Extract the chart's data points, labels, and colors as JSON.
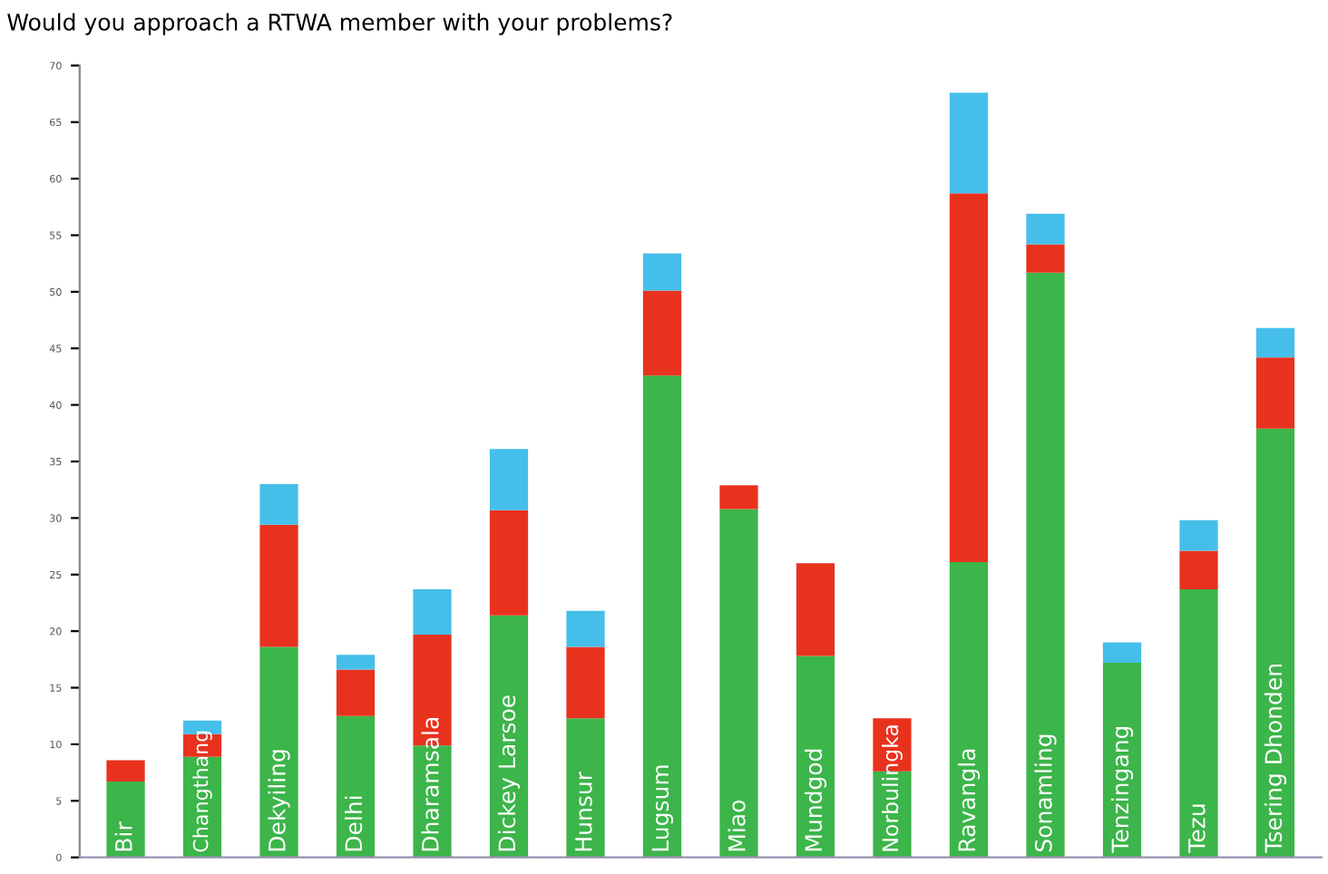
{
  "chart_data": {
    "type": "bar",
    "title": "Would you approach a RTWA member with your problems?",
    "categories": [
      "Bir",
      "Changthang",
      "Dekyiling",
      "Delhi",
      "Dharamsala",
      "Dickey Larsoe",
      "Hunsur",
      "Lugsum",
      "Miao",
      "Mundgod",
      "Norbulingka",
      "Ravangla",
      "Sonamling",
      "Tenzingang",
      "Tezu",
      "Tsering Dhonden"
    ],
    "stacked": true,
    "series": [
      {
        "color": "#3cb54a",
        "values": [
          6.7,
          8.9,
          18.6,
          12.5,
          9.9,
          21.4,
          12.3,
          42.6,
          30.8,
          17.8,
          7.6,
          26.1,
          51.7,
          17.2,
          23.7,
          37.9
        ]
      },
      {
        "color": "#e8321e",
        "values": [
          1.9,
          2.0,
          10.8,
          4.1,
          9.8,
          9.3,
          6.3,
          7.5,
          2.1,
          8.2,
          4.7,
          32.6,
          2.5,
          0,
          3.4,
          6.3
        ]
      },
      {
        "color": "#45bfea",
        "values": [
          0,
          1.2,
          3.6,
          1.3,
          4.0,
          5.4,
          3.2,
          3.3,
          0,
          0,
          0,
          8.9,
          2.7,
          1.8,
          2.7,
          2.6
        ]
      }
    ],
    "ylim": [
      0,
      70
    ],
    "yticks": [
      0,
      5,
      10,
      15,
      20,
      25,
      30,
      35,
      40,
      45,
      50,
      55,
      60,
      65,
      70
    ],
    "grid": false,
    "legend": false
  }
}
